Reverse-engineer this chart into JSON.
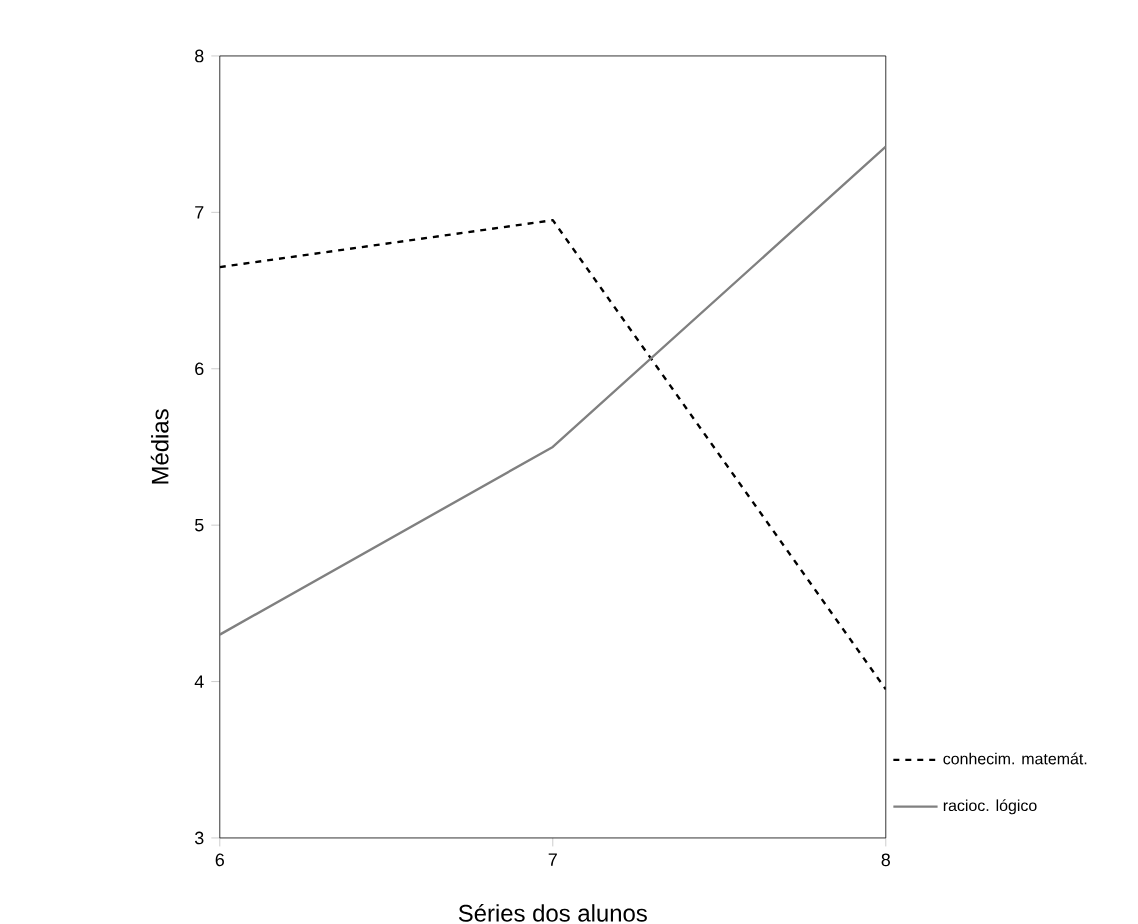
{
  "chart_data": {
    "type": "line",
    "xlabel": "Séries dos alunos",
    "ylabel": "Médias",
    "x": [
      6,
      7,
      8
    ],
    "series": [
      {
        "name": "conhecim. matemát.",
        "color": "#000000",
        "line_style": "dashed",
        "values": [
          6.65,
          6.95,
          3.95
        ]
      },
      {
        "name": "racioc. lógico",
        "color": "#808080",
        "line_style": "solid",
        "values": [
          4.3,
          5.5,
          7.42
        ]
      }
    ],
    "xlim": [
      6,
      8
    ],
    "xticks": [
      6,
      7,
      8
    ],
    "ylim": [
      3,
      8
    ],
    "yticks": [
      3,
      4,
      5,
      6,
      7,
      8
    ],
    "grid": false,
    "legend": "right",
    "marker": "none"
  }
}
